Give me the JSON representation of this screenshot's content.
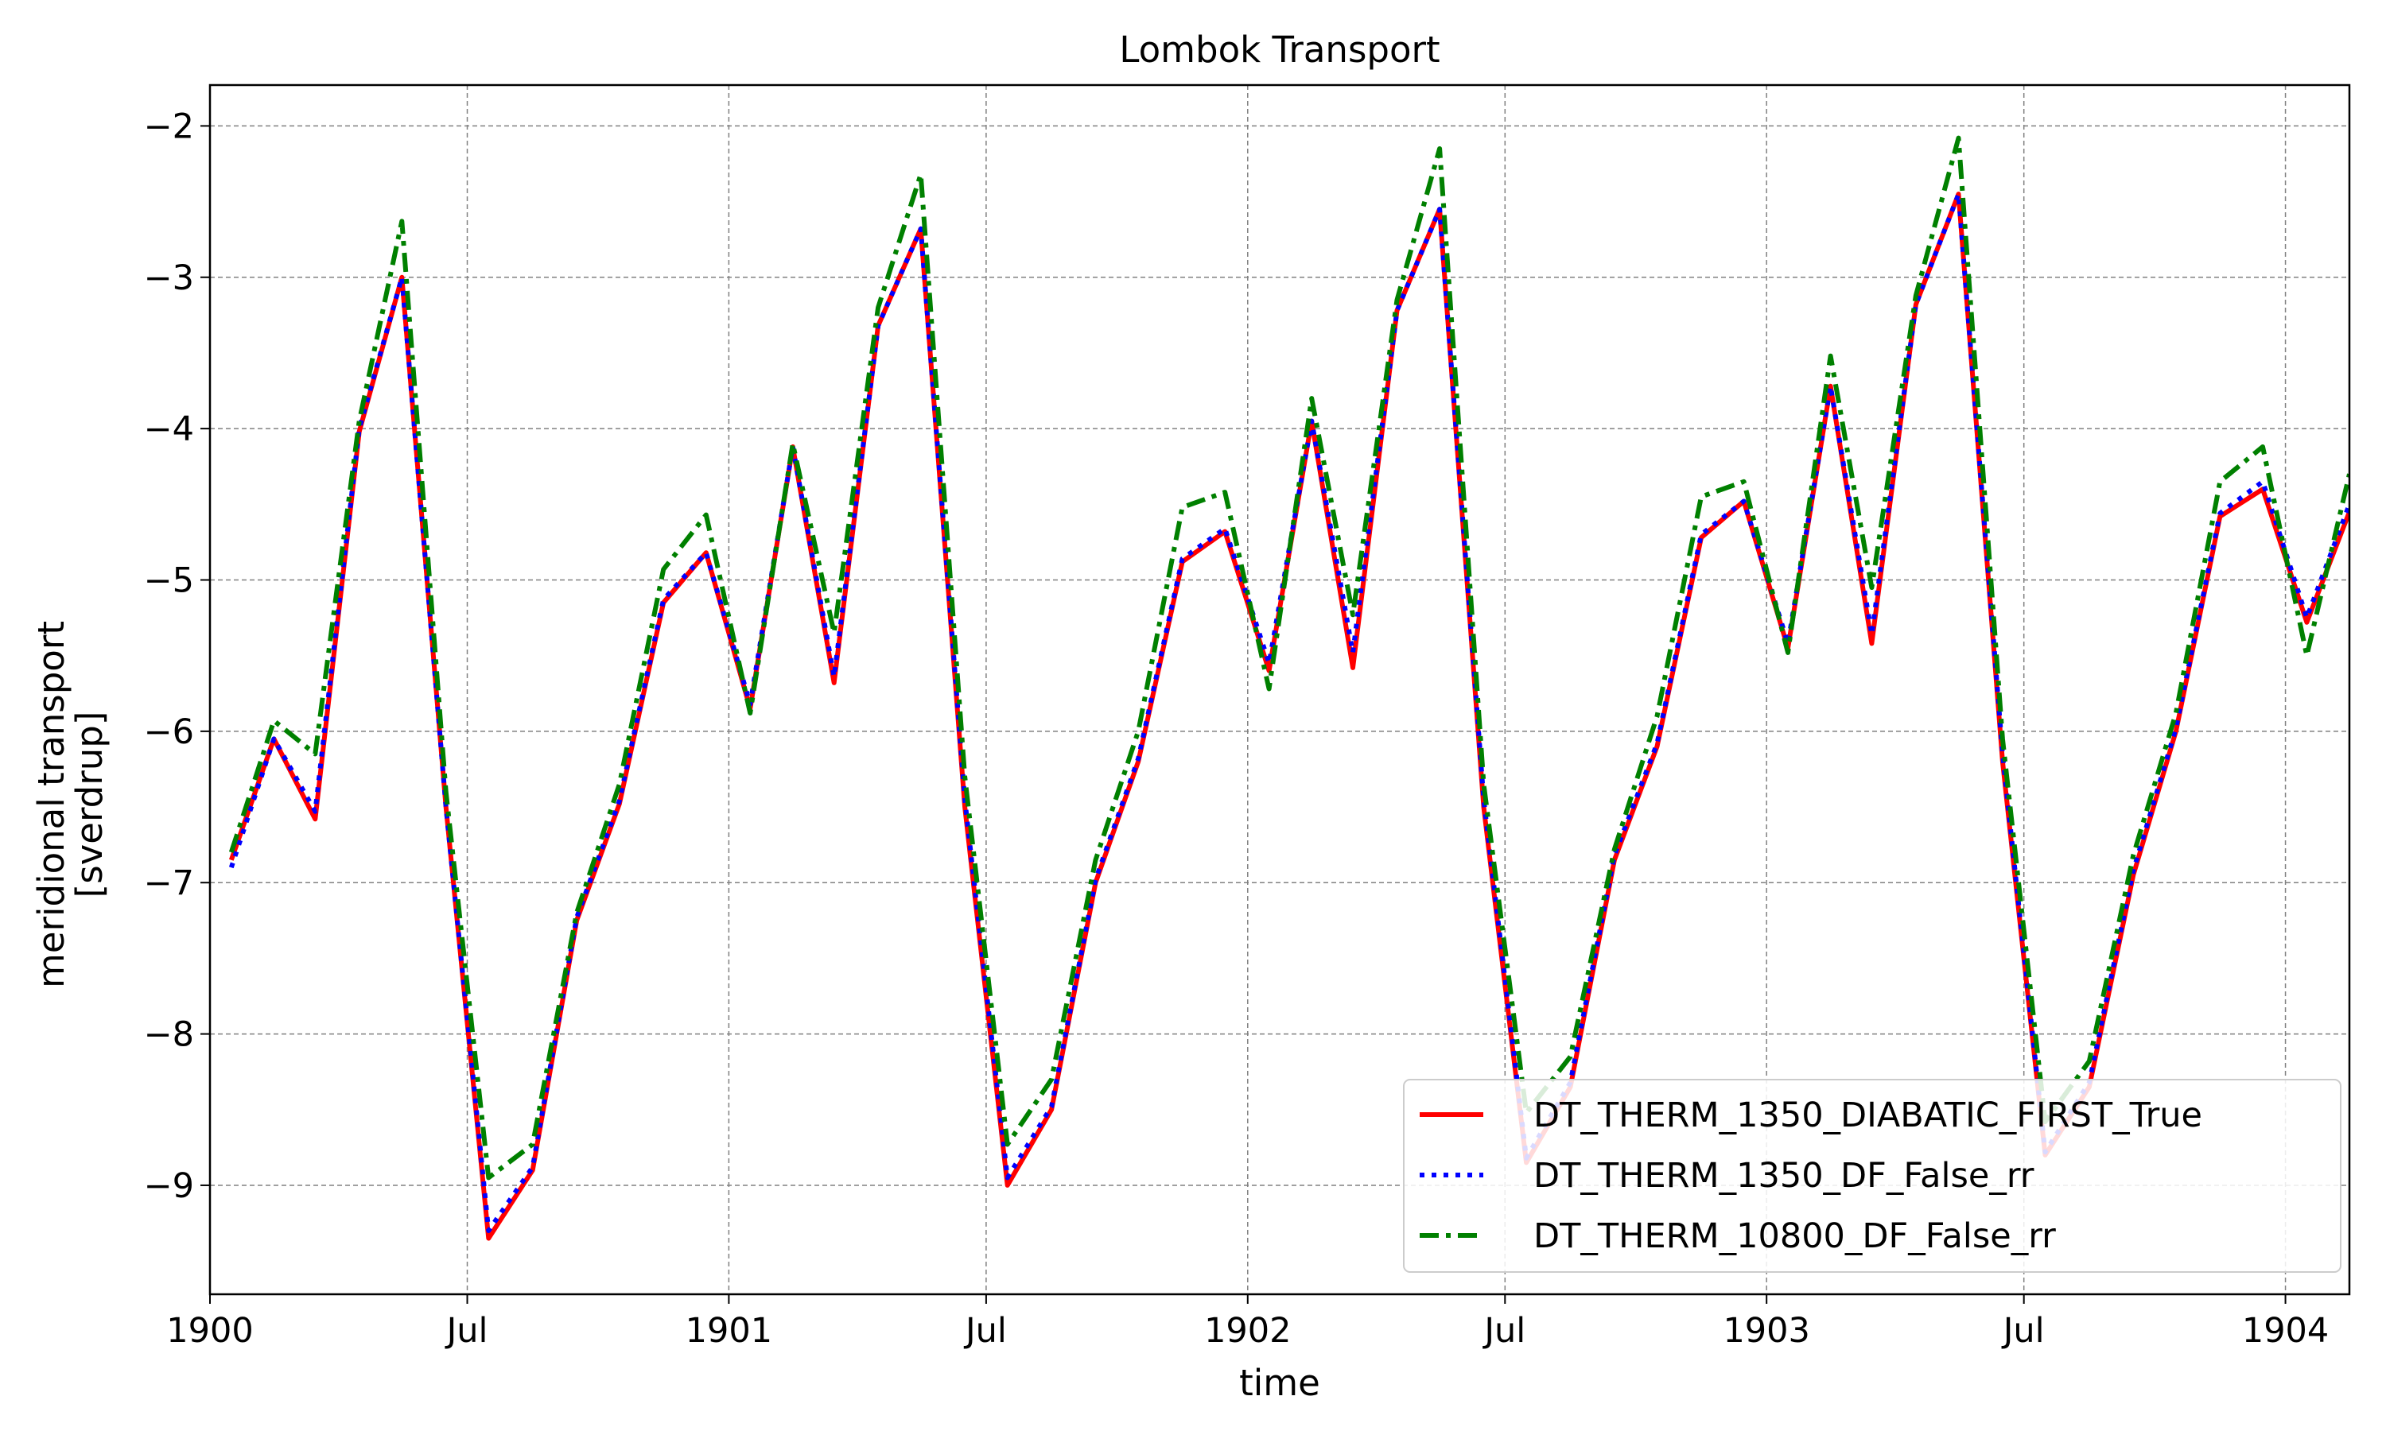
{
  "chart_data": {
    "type": "line",
    "title": "Lombok Transport",
    "xlabel": "time",
    "ylabel_line1": "meridional transport",
    "ylabel_line2": "[sverdrup]",
    "xlim": [
      "1900-01-01",
      "1904-02-15"
    ],
    "ylim": [
      -9.72,
      -1.73
    ],
    "grid": true,
    "legend_position": "bottom-right",
    "x_ticks": [
      {
        "date": "1900-01-01",
        "label": "1900"
      },
      {
        "date": "1900-07-01",
        "label": "Jul"
      },
      {
        "date": "1901-01-01",
        "label": "1901"
      },
      {
        "date": "1901-07-01",
        "label": "Jul"
      },
      {
        "date": "1902-01-01",
        "label": "1902"
      },
      {
        "date": "1902-07-01",
        "label": "Jul"
      },
      {
        "date": "1903-01-01",
        "label": "1903"
      },
      {
        "date": "1903-07-01",
        "label": "Jul"
      },
      {
        "date": "1904-01-01",
        "label": "1904"
      }
    ],
    "y_ticks": [
      {
        "value": -2,
        "label": "−2"
      },
      {
        "value": -3,
        "label": "−3"
      },
      {
        "value": -4,
        "label": "−4"
      },
      {
        "value": -5,
        "label": "−5"
      },
      {
        "value": -6,
        "label": "−6"
      },
      {
        "value": -7,
        "label": "−7"
      },
      {
        "value": -8,
        "label": "−8"
      },
      {
        "value": -9,
        "label": "−9"
      }
    ],
    "x": [
      "1900-01-16",
      "1900-02-15",
      "1900-03-16",
      "1900-04-16",
      "1900-05-16",
      "1900-06-16",
      "1900-07-16",
      "1900-08-16",
      "1900-09-16",
      "1900-10-16",
      "1900-11-16",
      "1900-12-16",
      "1901-01-16",
      "1901-02-15",
      "1901-03-16",
      "1901-04-16",
      "1901-05-16",
      "1901-06-16",
      "1901-07-16",
      "1901-08-16",
      "1901-09-16",
      "1901-10-16",
      "1901-11-16",
      "1901-12-16",
      "1902-01-16",
      "1902-02-15",
      "1902-03-16",
      "1902-04-16",
      "1902-05-16",
      "1902-06-16",
      "1902-07-16",
      "1902-08-16",
      "1902-09-16",
      "1902-10-16",
      "1902-11-16",
      "1902-12-16",
      "1903-01-16",
      "1903-02-15",
      "1903-03-16",
      "1903-04-16",
      "1903-05-16",
      "1903-06-16",
      "1903-07-16",
      "1903-08-16",
      "1903-09-16",
      "1903-10-16",
      "1903-11-16",
      "1903-12-16",
      "1904-01-16",
      "1904-02-15"
    ],
    "series": [
      {
        "name": "DT_THERM_1350_DIABATIC_FIRST_True",
        "color": "#ff0000",
        "dash": "solid",
        "values": [
          -6.85,
          -6.05,
          -6.58,
          -4.02,
          -3.0,
          -6.5,
          -9.35,
          -8.9,
          -7.25,
          -6.48,
          -5.15,
          -4.82,
          -5.85,
          -4.12,
          -5.68,
          -3.32,
          -2.68,
          -6.5,
          -9.0,
          -8.5,
          -7.0,
          -6.2,
          -4.88,
          -4.68,
          -5.6,
          -3.95,
          -5.58,
          -3.22,
          -2.55,
          -6.5,
          -8.85,
          -8.35,
          -6.85,
          -6.1,
          -4.72,
          -4.48,
          -5.45,
          -3.72,
          -5.42,
          -3.18,
          -2.45,
          -6.2,
          -8.8,
          -8.35,
          -6.95,
          -6.0,
          -4.58,
          -4.4,
          -5.28,
          -4.55
        ]
      },
      {
        "name": "DT_THERM_1350_DF_False_rr",
        "color": "#0000ff",
        "dash": "dotted",
        "values": [
          -6.9,
          -6.05,
          -6.53,
          -4.0,
          -3.0,
          -6.5,
          -9.3,
          -8.88,
          -7.23,
          -6.46,
          -5.13,
          -4.82,
          -5.82,
          -4.12,
          -5.64,
          -3.32,
          -2.68,
          -6.45,
          -8.95,
          -8.48,
          -6.98,
          -6.18,
          -4.86,
          -4.66,
          -5.55,
          -3.95,
          -5.48,
          -3.22,
          -2.55,
          -6.45,
          -8.82,
          -8.32,
          -6.82,
          -6.08,
          -4.7,
          -4.48,
          -5.42,
          -3.72,
          -5.36,
          -3.18,
          -2.45,
          -6.15,
          -8.78,
          -8.32,
          -6.92,
          -5.98,
          -4.56,
          -4.35,
          -5.25,
          -4.5
        ]
      },
      {
        "name": "DT_THERM_10800_DF_False_rr",
        "color": "#008000",
        "dash": "dashdot",
        "values": [
          -6.8,
          -5.93,
          -6.15,
          -3.95,
          -2.63,
          -6.4,
          -8.95,
          -8.73,
          -7.2,
          -6.35,
          -4.93,
          -4.57,
          -5.88,
          -4.1,
          -5.35,
          -3.2,
          -2.32,
          -6.3,
          -8.73,
          -8.3,
          -6.85,
          -6.0,
          -4.52,
          -4.42,
          -5.72,
          -3.8,
          -5.23,
          -3.15,
          -2.15,
          -6.35,
          -8.52,
          -8.15,
          -6.78,
          -5.9,
          -4.45,
          -4.35,
          -5.48,
          -3.52,
          -5.05,
          -3.12,
          -2.08,
          -6.05,
          -8.58,
          -8.18,
          -6.82,
          -5.88,
          -4.35,
          -4.12,
          -5.5,
          -4.3
        ]
      }
    ]
  }
}
